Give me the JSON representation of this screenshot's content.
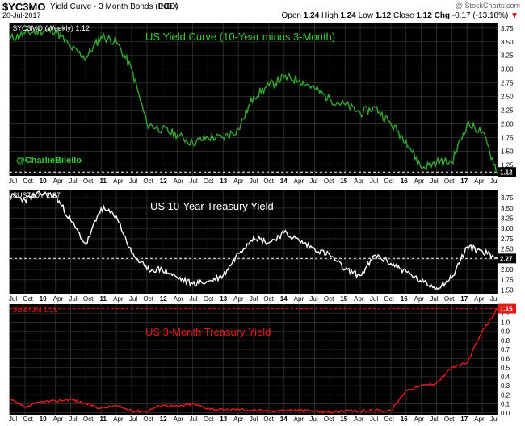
{
  "header": {
    "symbol": "$YC3MO",
    "title": "Yield Curve - 3 Month Bonds (EOD)",
    "exchange": "INDX",
    "date": "20-Jul-2017",
    "brand": "@ StockCharts.com",
    "open_label": "Open",
    "open": "1.24",
    "high_label": "High",
    "high": "1.24",
    "low_label": "Low",
    "low": "1.12",
    "close_label": "Close",
    "close": "1.12",
    "chg_label": "Chg",
    "chg": "-0.17 (-13.18%)",
    "down_arrow": "▼"
  },
  "colors": {
    "background": "#000000",
    "grid": "#2a2a2a",
    "yield_curve": "#33a82e",
    "ten_year": "#ffffff",
    "three_month": "#e31b1b",
    "axis_text": "#000000",
    "title_green": "#33cc33",
    "title_red": "#e31b1b"
  },
  "x_axis_labels": [
    "Jul",
    "Oct",
    "10",
    "Apr",
    "Jul",
    "Oct",
    "11",
    "Apr",
    "Jul",
    "Oct",
    "12",
    "Apr",
    "Jul",
    "Oct",
    "13",
    "Apr",
    "Jul",
    "Oct",
    "14",
    "Apr",
    "Jul",
    "Oct",
    "15",
    "Apr",
    "Jul",
    "Oct",
    "16",
    "Apr",
    "Jul",
    "Oct",
    "17",
    "Apr",
    "Jul"
  ],
  "chart_data": [
    {
      "type": "line",
      "legend": "$YC3MO (Weekly) 1.12",
      "title": "US Yield Curve (10-Year minus 3-Month)",
      "annotation": "@CharlieBilello",
      "last_value_label": "1.12",
      "ylim": [
        1.05,
        3.85
      ],
      "y_ticks": [
        "1.25",
        "1.50",
        "1.75",
        "2.00",
        "2.25",
        "2.50",
        "2.75",
        "3.00",
        "3.25",
        "3.50",
        "3.75"
      ],
      "y_tick_values": [
        1.25,
        1.5,
        1.75,
        2.0,
        2.25,
        2.5,
        2.75,
        3.0,
        3.25,
        3.5,
        3.75
      ],
      "reference_line": 1.12,
      "series": [
        {
          "x": [
            0,
            1,
            2,
            3,
            4,
            5,
            6,
            7,
            8,
            9,
            10,
            11,
            12,
            13,
            14,
            15,
            16,
            17,
            18,
            19,
            20,
            21,
            22,
            23,
            24,
            25,
            26,
            27,
            28,
            29,
            30,
            31,
            32
          ],
          "values": [
            3.55,
            3.65,
            3.7,
            3.7,
            3.4,
            3.2,
            3.6,
            3.5,
            3.0,
            2.0,
            1.9,
            1.8,
            1.65,
            1.75,
            1.75,
            1.9,
            2.5,
            2.7,
            2.85,
            2.8,
            2.65,
            2.45,
            2.35,
            2.2,
            2.3,
            2.0,
            1.7,
            1.2,
            1.3,
            1.3,
            2.0,
            1.85,
            1.12
          ]
        }
      ]
    },
    {
      "type": "line",
      "legend": "$UST10Y 2.27",
      "title": "US 10-Year Treasury Yield",
      "last_value_label": "2.27",
      "ylim": [
        1.35,
        3.95
      ],
      "y_ticks": [
        "1.50",
        "1.75",
        "2.00",
        "2.25",
        "2.50",
        "2.75",
        "3.00",
        "3.25",
        "3.50",
        "3.75"
      ],
      "y_tick_values": [
        1.5,
        1.75,
        2.0,
        2.25,
        2.5,
        2.75,
        3.0,
        3.25,
        3.5,
        3.75
      ],
      "reference_line": 2.27,
      "series": [
        {
          "x": [
            0,
            1,
            2,
            3,
            4,
            5,
            6,
            7,
            8,
            9,
            10,
            11,
            12,
            13,
            14,
            15,
            16,
            17,
            18,
            19,
            20,
            21,
            22,
            23,
            24,
            25,
            26,
            27,
            28,
            29,
            30,
            31,
            32
          ],
          "values": [
            3.8,
            3.7,
            3.85,
            3.8,
            3.2,
            2.6,
            3.5,
            3.3,
            2.4,
            2.0,
            2.0,
            1.8,
            1.65,
            1.7,
            1.85,
            2.4,
            2.8,
            2.65,
            2.9,
            2.7,
            2.5,
            2.35,
            2.0,
            1.85,
            2.35,
            2.15,
            1.95,
            1.7,
            1.55,
            1.8,
            2.55,
            2.45,
            2.27
          ]
        }
      ]
    },
    {
      "type": "line",
      "legend": "$UST3M 1.15",
      "title": "US 3-Month Treasury Yield",
      "last_value_label": "1.15",
      "ylim": [
        -0.02,
        1.2
      ],
      "y_ticks": [
        "0.0",
        "0.1",
        "0.2",
        "0.3",
        "0.4",
        "0.5",
        "0.6",
        "0.7",
        "0.8",
        "0.9",
        "1.0",
        "1.1"
      ],
      "y_tick_values": [
        0.0,
        0.1,
        0.2,
        0.3,
        0.4,
        0.5,
        0.6,
        0.7,
        0.8,
        0.9,
        1.0,
        1.1
      ],
      "reference_line": 1.15,
      "series": [
        {
          "x": [
            0,
            1,
            2,
            3,
            4,
            5,
            6,
            7,
            8,
            9,
            10,
            11,
            12,
            13,
            14,
            15,
            16,
            17,
            18,
            19,
            20,
            21,
            22,
            23,
            24,
            25,
            26,
            27,
            28,
            29,
            30,
            31,
            32
          ],
          "values": [
            0.15,
            0.06,
            0.12,
            0.13,
            0.15,
            0.1,
            0.05,
            0.08,
            0.02,
            0.02,
            0.09,
            0.07,
            0.1,
            0.05,
            0.03,
            0.04,
            0.03,
            0.02,
            0.03,
            0.03,
            0.02,
            0.01,
            0.02,
            0.02,
            0.03,
            0.02,
            0.25,
            0.3,
            0.33,
            0.5,
            0.55,
            0.9,
            1.15
          ]
        }
      ]
    }
  ]
}
